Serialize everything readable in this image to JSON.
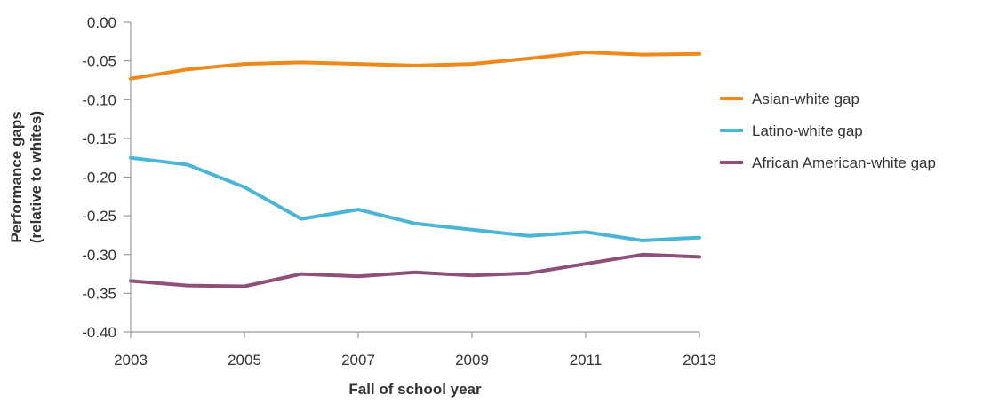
{
  "chart_data": {
    "type": "line",
    "xlabel": "Fall of school year",
    "ylabel_lines": [
      "Performance gaps",
      "(relative to whites)"
    ],
    "x": [
      2003,
      2004,
      2005,
      2006,
      2007,
      2008,
      2009,
      2010,
      2011,
      2012,
      2013
    ],
    "x_ticks": [
      2003,
      2005,
      2007,
      2009,
      2011,
      2013
    ],
    "x_tick_labels": [
      "2003",
      "2005",
      "2007",
      "2009",
      "2011",
      "2013"
    ],
    "xlim": [
      2003,
      2013
    ],
    "ylim": [
      -0.4,
      0.0
    ],
    "y_ticks": [
      0.0,
      -0.05,
      -0.1,
      -0.15,
      -0.2,
      -0.25,
      -0.3,
      -0.35,
      -0.4
    ],
    "y_tick_labels": [
      "0.00",
      "-0.05",
      "-0.10",
      "-0.15",
      "-0.20",
      "-0.25",
      "-0.30",
      "-0.35",
      "-0.40"
    ],
    "grid": false,
    "legend_position": "right",
    "series": [
      {
        "name": "Asian-white gap",
        "color": "#ee8a1c",
        "values": [
          -0.073,
          -0.061,
          -0.054,
          -0.052,
          -0.054,
          -0.056,
          -0.054,
          -0.047,
          -0.039,
          -0.042,
          -0.041
        ]
      },
      {
        "name": "Latino-white gap",
        "color": "#4bb5d6",
        "values": [
          -0.175,
          -0.184,
          -0.213,
          -0.254,
          -0.242,
          -0.26,
          -0.268,
          -0.276,
          -0.271,
          -0.282,
          -0.278
        ]
      },
      {
        "name": "African American-white gap",
        "color": "#8e4f78",
        "values": [
          -0.334,
          -0.34,
          -0.341,
          -0.325,
          -0.328,
          -0.323,
          -0.327,
          -0.324,
          -0.312,
          -0.3,
          -0.303
        ]
      }
    ]
  }
}
